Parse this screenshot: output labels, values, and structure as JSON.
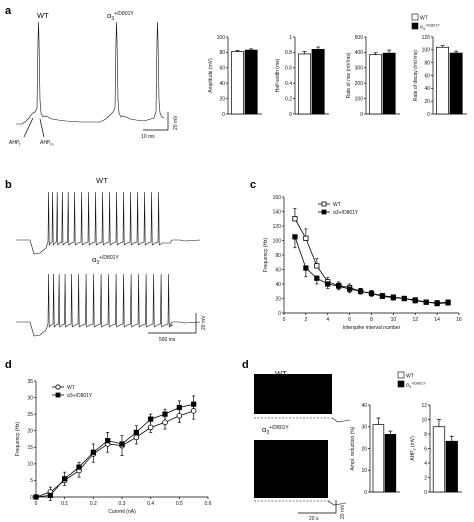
{
  "panels": {
    "a": {
      "label": "a",
      "traces": {
        "wt_label": "WT",
        "mut_base": "α",
        "mut_sub": "3",
        "mut_sup": "+/D801Y",
        "ahp_f": "AHP",
        "ahp_f_sub": "f",
        "ahp_m": "AHP",
        "ahp_m_sub": "m",
        "scale_time": "10 ms",
        "scale_volt": "20 mV"
      },
      "legend": {
        "wt": "WT",
        "mut_base": "α",
        "mut_sub": "3",
        "mut_sup": "+/D801Y"
      },
      "significance": "*"
    },
    "b": {
      "label": "b",
      "wt_label": "WT",
      "mut_base": "α",
      "mut_sub": "3",
      "mut_sup": "+/D801Y",
      "scale_time": "500 ms",
      "scale_volt": "20 mV"
    },
    "c": {
      "label": "c"
    },
    "d1": {
      "label": "d"
    },
    "d2": {
      "label": "d",
      "wt_label": "WT",
      "mut_base": "α",
      "mut_sub": "3",
      "mut_sup": "+/D801Y",
      "scale_time": "20 s",
      "scale_volt": "20 mV",
      "legend": {
        "wt": "WT",
        "mut_base": "α",
        "mut_sub": "3",
        "mut_sup": "+/D801Y"
      }
    }
  },
  "colors": {
    "wt_fill": "#ffffff",
    "mut_fill": "#000000",
    "ink": "#111111"
  },
  "chart_data": [
    {
      "id": "a-amplitude",
      "type": "bar",
      "categories": [
        "WT",
        "α3+/D801Y"
      ],
      "values": [
        81,
        83
      ],
      "errors": [
        1.5,
        1.5
      ],
      "ylabel": "Amplitude (mV)",
      "ylim": [
        0,
        100
      ],
      "yticks": [
        0,
        20,
        40,
        60,
        80,
        100
      ]
    },
    {
      "id": "a-halfwidth",
      "type": "bar",
      "categories": [
        "WT",
        "α3+/D801Y"
      ],
      "values": [
        0.78,
        0.84
      ],
      "errors": [
        0.03,
        0.03
      ],
      "ylabel": "Half-width (ms)",
      "ylim": [
        0,
        1.0
      ],
      "yticks": [
        0,
        0.2,
        0.4,
        0.6,
        0.8,
        1.0
      ]
    },
    {
      "id": "a-rise",
      "type": "bar",
      "categories": [
        "WT",
        "α3+/D801Y"
      ],
      "values": [
        385,
        395
      ],
      "errors": [
        12,
        20
      ],
      "ylabel": "Rate of rise (mV/ms)",
      "ylim": [
        0,
        500
      ],
      "yticks": [
        0,
        100,
        200,
        300,
        400,
        500
      ]
    },
    {
      "id": "a-decay",
      "type": "bar",
      "categories": [
        "WT",
        "α3+/D801Y"
      ],
      "values": [
        104,
        95
      ],
      "errors": [
        2.5,
        3
      ],
      "ylabel": "Rate of decay (mV/ms)",
      "ylim": [
        0,
        120
      ],
      "yticks": [
        0,
        20,
        40,
        60,
        80,
        100,
        120
      ]
    },
    {
      "id": "c-frequency",
      "type": "line",
      "xlabel": "Interspike interval number",
      "ylabel": "Frequency (Hz)",
      "xlim": [
        0,
        16
      ],
      "ylim": [
        0,
        160
      ],
      "xticks": [
        0,
        2,
        4,
        6,
        8,
        10,
        12,
        14,
        16
      ],
      "yticks": [
        0,
        20,
        40,
        60,
        80,
        100,
        120,
        140,
        160
      ],
      "legend_position": "top-right",
      "x": [
        1,
        2,
        3,
        4,
        5,
        6,
        7,
        8,
        9,
        10,
        11,
        12,
        13,
        14,
        15
      ],
      "series": [
        {
          "name": "WT",
          "marker": "open-square",
          "values": [
            130,
            103,
            65,
            43,
            38,
            35,
            30,
            27,
            24,
            22,
            20,
            18,
            15,
            14,
            15
          ],
          "errors": [
            14,
            13,
            10,
            6,
            5,
            5,
            4,
            4,
            3,
            3,
            3,
            3,
            3,
            3,
            3
          ]
        },
        {
          "name": "α3+/D801Y",
          "marker": "filled-square",
          "values": [
            105,
            62,
            48,
            40,
            37,
            33,
            30,
            27,
            23,
            21,
            20,
            17,
            15,
            13,
            14
          ],
          "errors": [
            15,
            12,
            8,
            6,
            5,
            5,
            4,
            4,
            3,
            3,
            3,
            3,
            3,
            3,
            3
          ]
        }
      ]
    },
    {
      "id": "d-frequency-current",
      "type": "line",
      "xlabel": "Current (nA)",
      "ylabel": "Frequency (Hz)",
      "xlim": [
        0,
        0.6
      ],
      "ylim": [
        0,
        35
      ],
      "xticks": [
        0,
        0.1,
        0.2,
        0.3,
        0.4,
        0.5,
        0.6
      ],
      "yticks": [
        0,
        5,
        10,
        15,
        20,
        25,
        30,
        35
      ],
      "legend_position": "top-left",
      "x": [
        0,
        0.05,
        0.1,
        0.15,
        0.2,
        0.25,
        0.3,
        0.35,
        0.4,
        0.45,
        0.5,
        0.55
      ],
      "series": [
        {
          "name": "WT",
          "marker": "open-circle",
          "values": [
            0,
            1.5,
            5,
            8,
            13,
            16,
            15.5,
            18,
            21,
            22.5,
            24.5,
            26
          ],
          "errors": [
            0.5,
            1.5,
            2.5,
            2.5,
            3,
            3.5,
            3,
            3.5,
            4,
            4,
            4.5,
            4.5
          ]
        },
        {
          "name": "α3+/D801Y",
          "marker": "filled-square",
          "values": [
            0,
            0.5,
            5.5,
            9,
            13.5,
            17,
            16,
            19.5,
            23.5,
            25,
            27,
            28
          ],
          "errors": [
            0.5,
            1.5,
            2,
            3,
            3,
            3.5,
            3.5,
            3.5,
            4,
            4.5,
            4.5,
            4.5
          ]
        }
      ]
    },
    {
      "id": "d-ampl-reduction",
      "type": "bar",
      "categories": [
        "WT",
        "α3+/D801Y"
      ],
      "values": [
        31,
        26.5
      ],
      "errors": [
        3,
        1.5
      ],
      "ylabel": "Ampl. reduction (%)",
      "ylim": [
        0,
        40
      ],
      "yticks": [
        0,
        10,
        20,
        30,
        40
      ]
    },
    {
      "id": "d-ahps",
      "type": "bar",
      "categories": [
        "WT",
        "α3+/D801Y"
      ],
      "values": [
        9,
        7
      ],
      "errors": [
        1,
        0.7
      ],
      "ylabel": "AHPs (mV)",
      "ylabel_base": "AHP",
      "ylabel_sub": "s",
      "ylabel_unit": " (mV)",
      "ylim": [
        0,
        12
      ],
      "yticks": [
        0,
        2,
        4,
        6,
        8,
        10,
        12
      ]
    }
  ]
}
